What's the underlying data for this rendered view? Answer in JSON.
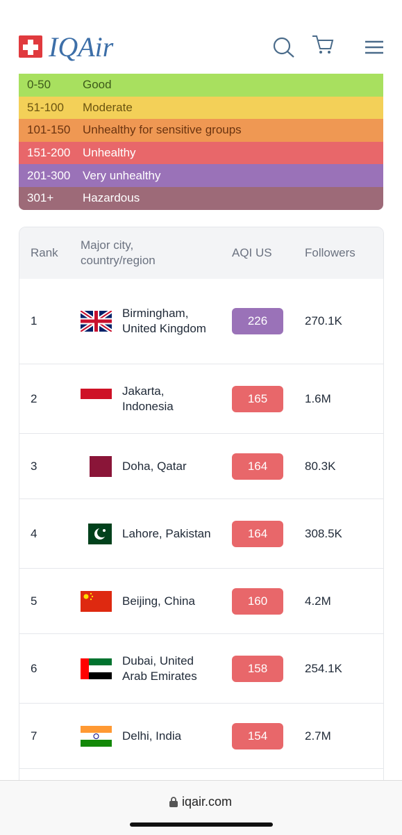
{
  "header": {
    "brand": "IQAir"
  },
  "legend": [
    {
      "range": "0-50",
      "label": "Good",
      "color": "#a8e05f",
      "text_color": "#3d5a1a"
    },
    {
      "range": "51-100",
      "label": "Moderate",
      "color": "#f3d058",
      "text_color": "#6b5410"
    },
    {
      "range": "101-150",
      "label": "Unhealthy for sensitive groups",
      "color": "#ef9853",
      "text_color": "#6b3410"
    },
    {
      "range": "151-200",
      "label": "Unhealthy",
      "color": "#e8676a",
      "text_color": "#ffffff"
    },
    {
      "range": "201-300",
      "label": "Very unhealthy",
      "color": "#9a72b8",
      "text_color": "#ffffff"
    },
    {
      "range": "301+",
      "label": "Hazardous",
      "color": "#9d6a78",
      "text_color": "#ffffff"
    }
  ],
  "table": {
    "headers": [
      "Rank",
      "Major city, country/region",
      "AQI US",
      "Followers"
    ],
    "rows": [
      {
        "rank": "1",
        "city": "Birmingham, United Kingdom",
        "aqi": "226",
        "followers": "270.1K",
        "color": "#9a72b8"
      },
      {
        "rank": "2",
        "city": "Jakarta, Indonesia",
        "aqi": "165",
        "followers": "1.6M",
        "color": "#e8676a"
      },
      {
        "rank": "3",
        "city": "Doha, Qatar",
        "aqi": "164",
        "followers": "80.3K",
        "color": "#e8676a"
      },
      {
        "rank": "4",
        "city": "Lahore, Pakistan",
        "aqi": "164",
        "followers": "308.5K",
        "color": "#e8676a"
      },
      {
        "rank": "5",
        "city": "Beijing, China",
        "aqi": "160",
        "followers": "4.2M",
        "color": "#e8676a"
      },
      {
        "rank": "6",
        "city": "Dubai, United Arab Emirates",
        "aqi": "158",
        "followers": "254.1K",
        "color": "#e8676a"
      },
      {
        "rank": "7",
        "city": "Delhi, India",
        "aqi": "154",
        "followers": "2.7M",
        "color": "#e8676a"
      }
    ]
  },
  "footer": {
    "url": "iqair.com"
  }
}
